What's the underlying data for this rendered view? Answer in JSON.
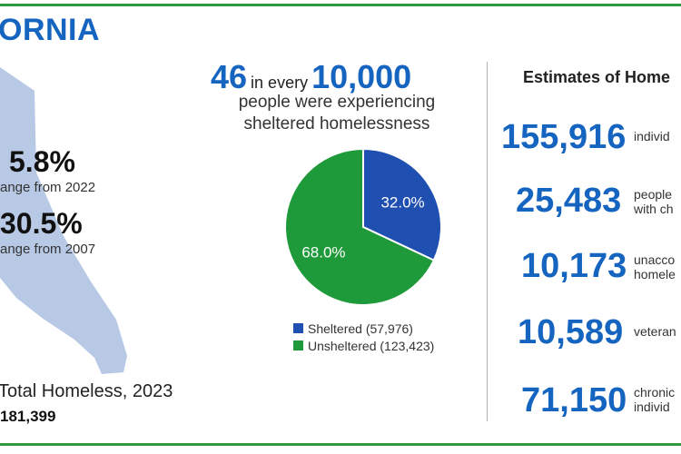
{
  "state": {
    "title": "ORNIA"
  },
  "change": [
    {
      "pct": "5.8%",
      "label": "ange from 2022"
    },
    {
      "pct": "30.5%",
      "label": "ange from 2007"
    }
  ],
  "total": {
    "label": "Total Homeless, 2023",
    "value": "181,399"
  },
  "rate": {
    "num1": "46",
    "mid": "in every",
    "num2": "10,000",
    "line2": "people were experiencing",
    "line3": "sheltered homelessness"
  },
  "colors": {
    "accent_blue": "#1565c0",
    "sheltered": "#1f4fb0",
    "unsheltered": "#1f9a3a",
    "map": "#b8c9e6",
    "border_green": "#2e9a3c"
  },
  "chart_data": {
    "type": "pie",
    "slices": [
      {
        "label": "Sheltered (57,976)",
        "value": 32.0,
        "display": "32.0%"
      },
      {
        "label": "Unsheltered (123,423)",
        "value": 68.0,
        "display": "68.0%"
      }
    ],
    "legend_position": "bottom"
  },
  "estimates": {
    "title": "Estimates of Home",
    "items": [
      {
        "number": "155,916",
        "desc": [
          "individ"
        ]
      },
      {
        "number": "25,483",
        "desc": [
          "people",
          "with ch"
        ]
      },
      {
        "number": "10,173",
        "desc": [
          "unacco",
          "homele"
        ]
      },
      {
        "number": "10,589",
        "desc": [
          "veteran"
        ]
      },
      {
        "number": "71,150",
        "desc": [
          "chronic",
          "individ"
        ]
      }
    ]
  }
}
